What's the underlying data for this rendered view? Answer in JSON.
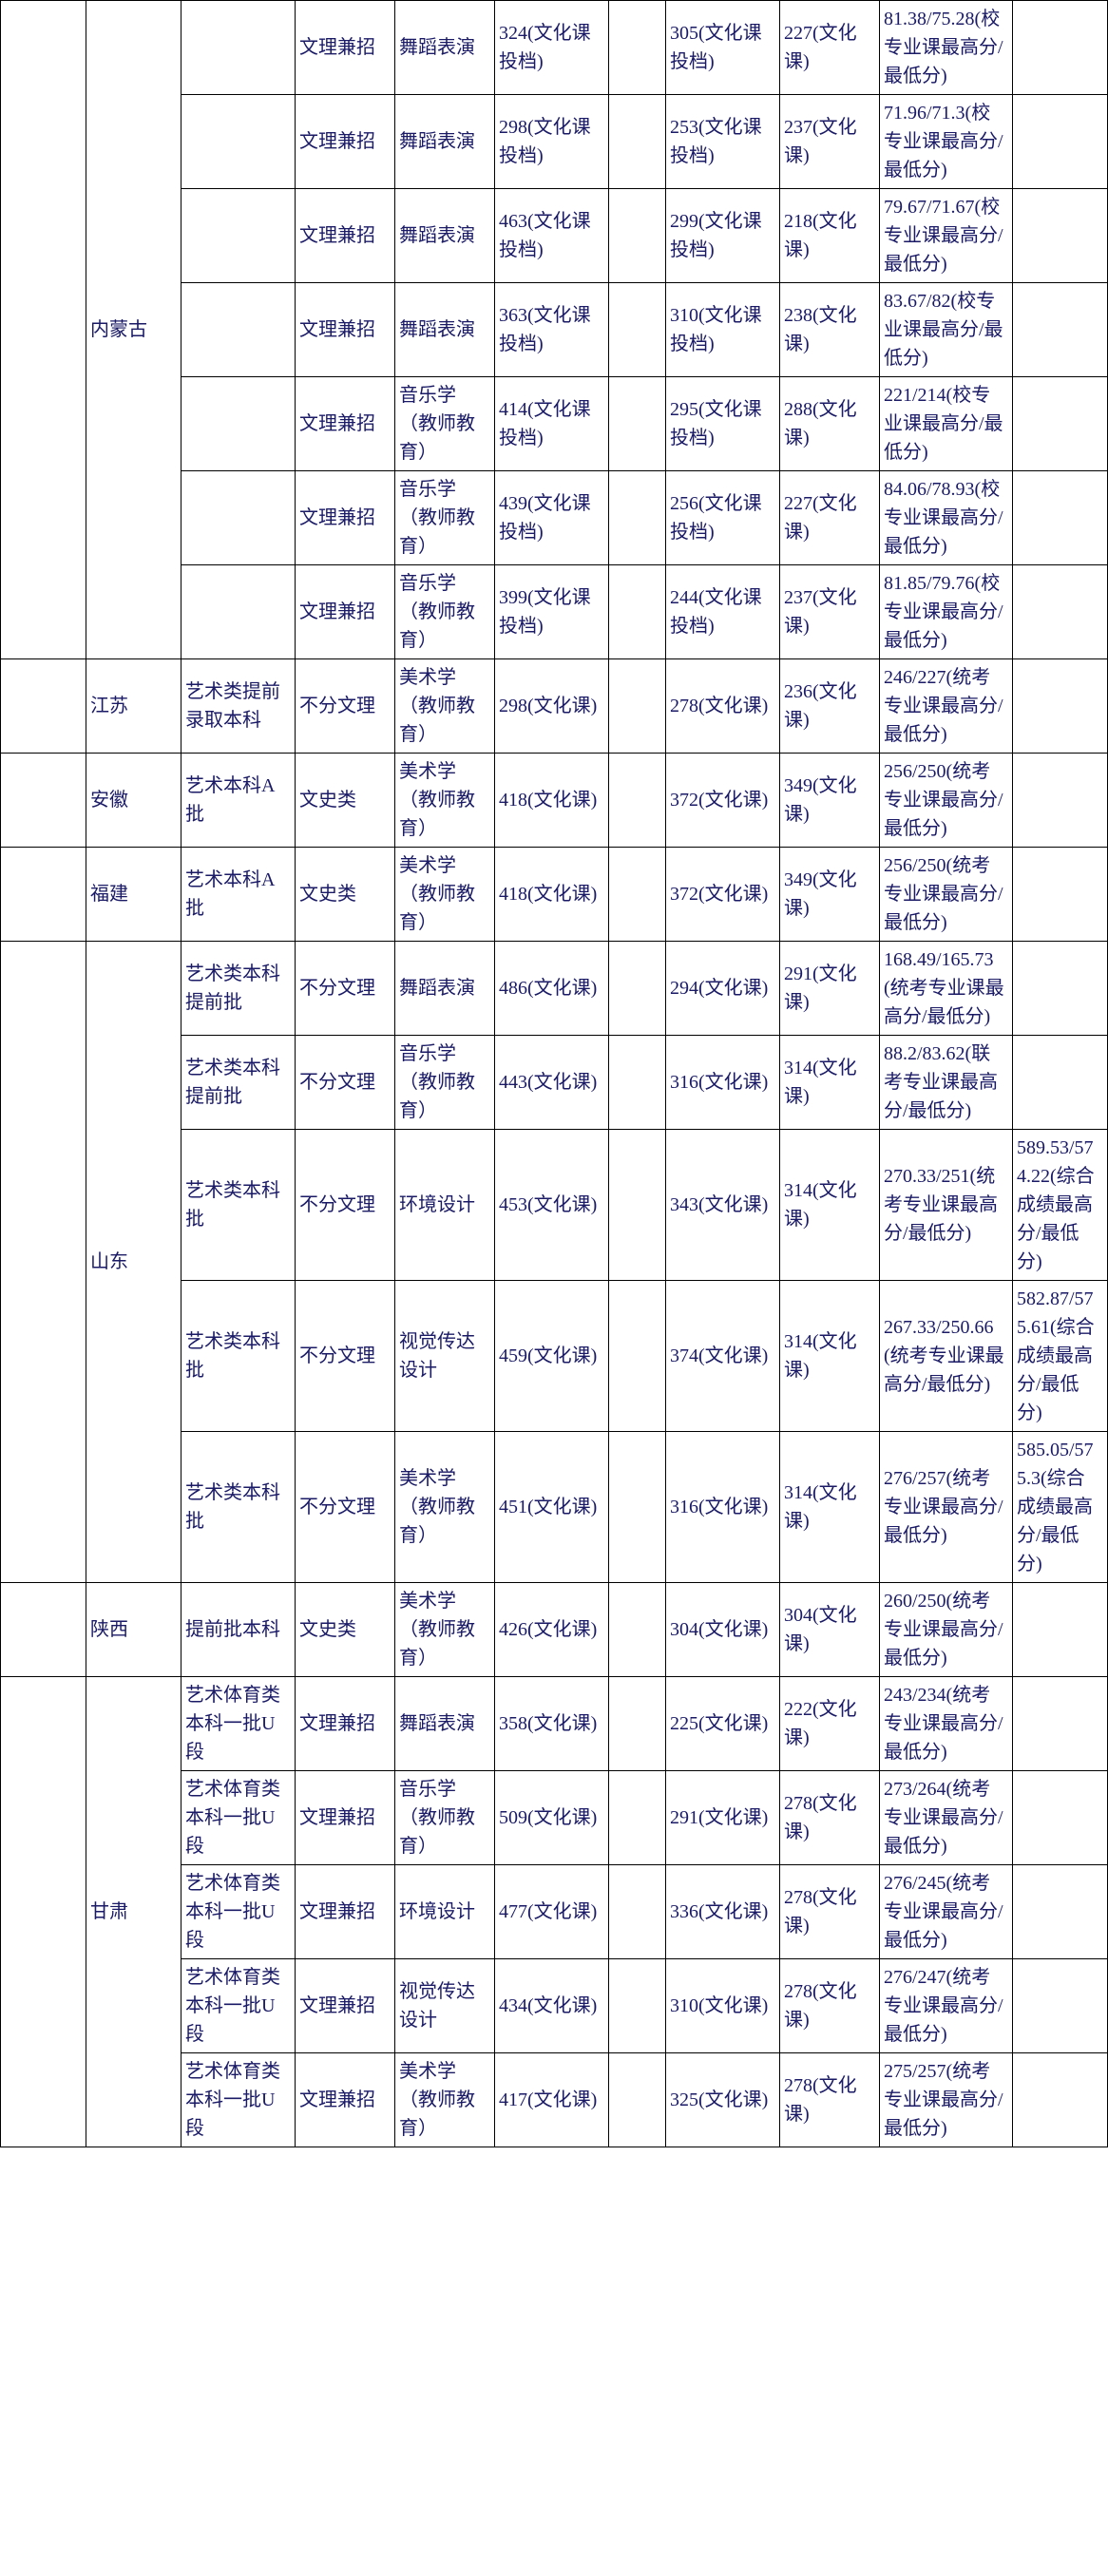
{
  "groups": [
    {
      "province": "内蒙古",
      "rows": [
        {
          "batch": "",
          "cat": "文理兼招",
          "major": "舞蹈表演",
          "c5": "324(文化课投档)",
          "c6": "",
          "c7": "305(文化课投档)",
          "c8": "227(文化课)",
          "c9": "81.38/75.28(校专业课最高分/最低分)",
          "c10": ""
        },
        {
          "batch": "",
          "cat": "文理兼招",
          "major": "舞蹈表演",
          "c5": "298(文化课投档)",
          "c6": "",
          "c7": "253(文化课投档)",
          "c8": "237(文化课)",
          "c9": "71.96/71.3(校专业课最高分/最低分)",
          "c10": ""
        },
        {
          "batch": "",
          "cat": "文理兼招",
          "major": "舞蹈表演",
          "c5": "463(文化课投档)",
          "c6": "",
          "c7": "299(文化课投档)",
          "c8": "218(文化课)",
          "c9": "79.67/71.67(校专业课最高分/最低分)",
          "c10": ""
        },
        {
          "batch": "",
          "cat": "文理兼招",
          "major": "舞蹈表演",
          "c5": "363(文化课投档)",
          "c6": "",
          "c7": "310(文化课投档)",
          "c8": "238(文化课)",
          "c9": "83.67/82(校专业课最高分/最低分)",
          "c10": ""
        },
        {
          "batch": "",
          "cat": "文理兼招",
          "major": "音乐学（教师教育）",
          "c5": "414(文化课投档)",
          "c6": "",
          "c7": "295(文化课投档)",
          "c8": "288(文化课)",
          "c9": "221/214(校专业课最高分/最低分)",
          "c10": ""
        },
        {
          "batch": "",
          "cat": "文理兼招",
          "major": "音乐学（教师教育）",
          "c5": "439(文化课投档)",
          "c6": "",
          "c7": "256(文化课投档)",
          "c8": "227(文化课)",
          "c9": "84.06/78.93(校专业课最高分/最低分)",
          "c10": ""
        },
        {
          "batch": "",
          "cat": "文理兼招",
          "major": "音乐学（教师教育）",
          "c5": "399(文化课投档)",
          "c6": "",
          "c7": "244(文化课投档)",
          "c8": "237(文化课)",
          "c9": "81.85/79.76(校专业课最高分/最低分)",
          "c10": ""
        }
      ]
    },
    {
      "province": "江苏",
      "rows": [
        {
          "batch": "艺术类提前录取本科",
          "cat": "不分文理",
          "major": "美术学（教师教育）",
          "c5": "298(文化课)",
          "c6": "",
          "c7": "278(文化课)",
          "c8": "236(文化课)",
          "c9": "246/227(统考专业课最高分/最低分)",
          "c10": ""
        }
      ]
    },
    {
      "province": "安徽",
      "rows": [
        {
          "batch": "艺术本科A批",
          "cat": "文史类",
          "major": "美术学（教师教育）",
          "c5": "418(文化课)",
          "c6": "",
          "c7": "372(文化课)",
          "c8": "349(文化课)",
          "c9": "256/250(统考专业课最高分/最低分)",
          "c10": ""
        }
      ]
    },
    {
      "province": "福建",
      "rows": [
        {
          "batch": "艺术本科A批",
          "cat": "文史类",
          "major": "美术学（教师教育）",
          "c5": "418(文化课)",
          "c6": "",
          "c7": "372(文化课)",
          "c8": "349(文化课)",
          "c9": "256/250(统考专业课最高分/最低分)",
          "c10": ""
        }
      ]
    },
    {
      "province": "山东",
      "rows": [
        {
          "batch": "艺术类本科提前批",
          "cat": "不分文理",
          "major": "舞蹈表演",
          "c5": "486(文化课)",
          "c6": "",
          "c7": "294(文化课)",
          "c8": "291(文化课)",
          "c9": "168.49/165.73(统考专业课最高分/最低分)",
          "c10": ""
        },
        {
          "batch": "艺术类本科提前批",
          "cat": "不分文理",
          "major": "音乐学（教师教育）",
          "c5": "443(文化课)",
          "c6": "",
          "c7": "316(文化课)",
          "c8": "314(文化课)",
          "c9": "88.2/83.62(联考专业课最高分/最低分)",
          "c10": ""
        },
        {
          "batch": "艺术类本科批",
          "cat": "不分文理",
          "major": "环境设计",
          "c5": "453(文化课)",
          "c6": "",
          "c7": "343(文化课)",
          "c8": "314(文化课)",
          "c9": "270.33/251(统考专业课最高分/最低分)",
          "c10": "589.53/574.22(综合成绩最高分/最低分)"
        },
        {
          "batch": "艺术类本科批",
          "cat": "不分文理",
          "major": "视觉传达设计",
          "c5": "459(文化课)",
          "c6": "",
          "c7": "374(文化课)",
          "c8": "314(文化课)",
          "c9": "267.33/250.66(统考专业课最高分/最低分)",
          "c10": "582.87/575.61(综合成绩最高分/最低分)"
        },
        {
          "batch": "艺术类本科批",
          "cat": "不分文理",
          "major": "美术学（教师教育）",
          "c5": "451(文化课)",
          "c6": "",
          "c7": "316(文化课)",
          "c8": "314(文化课)",
          "c9": "276/257(统考专业课最高分/最低分)",
          "c10": "585.05/575.3(综合成绩最高分/最低分)"
        }
      ]
    },
    {
      "province": "陕西",
      "rows": [
        {
          "batch": "提前批本科",
          "cat": "文史类",
          "major": "美术学（教师教育）",
          "c5": "426(文化课)",
          "c6": "",
          "c7": "304(文化课)",
          "c8": "304(文化课)",
          "c9": "260/250(统考专业课最高分/最低分)",
          "c10": ""
        }
      ]
    },
    {
      "province": "甘肃",
      "rows": [
        {
          "batch": "艺术体育类本科一批U段",
          "cat": "文理兼招",
          "major": "舞蹈表演",
          "c5": "358(文化课)",
          "c6": "",
          "c7": "225(文化课)",
          "c8": "222(文化课)",
          "c9": "243/234(统考专业课最高分/最低分)",
          "c10": ""
        },
        {
          "batch": "艺术体育类本科一批U段",
          "cat": "文理兼招",
          "major": "音乐学（教师教育）",
          "c5": "509(文化课)",
          "c6": "",
          "c7": "291(文化课)",
          "c8": "278(文化课)",
          "c9": "273/264(统考专业课最高分/最低分)",
          "c10": ""
        },
        {
          "batch": "艺术体育类本科一批U段",
          "cat": "文理兼招",
          "major": "环境设计",
          "c5": "477(文化课)",
          "c6": "",
          "c7": "336(文化课)",
          "c8": "278(文化课)",
          "c9": "276/245(统考专业课最高分/最低分)",
          "c10": ""
        },
        {
          "batch": "艺术体育类本科一批U段",
          "cat": "文理兼招",
          "major": "视觉传达设计",
          "c5": "434(文化课)",
          "c6": "",
          "c7": "310(文化课)",
          "c8": "278(文化课)",
          "c9": "276/247(统考专业课最高分/最低分)",
          "c10": ""
        },
        {
          "batch": "艺术体育类本科一批U段",
          "cat": "文理兼招",
          "major": "美术学（教师教育）",
          "c5": "417(文化课)",
          "c6": "",
          "c7": "325(文化课)",
          "c8": "278(文化课)",
          "c9": "275/257(统考专业课最高分/最低分)",
          "c10": ""
        }
      ]
    }
  ]
}
